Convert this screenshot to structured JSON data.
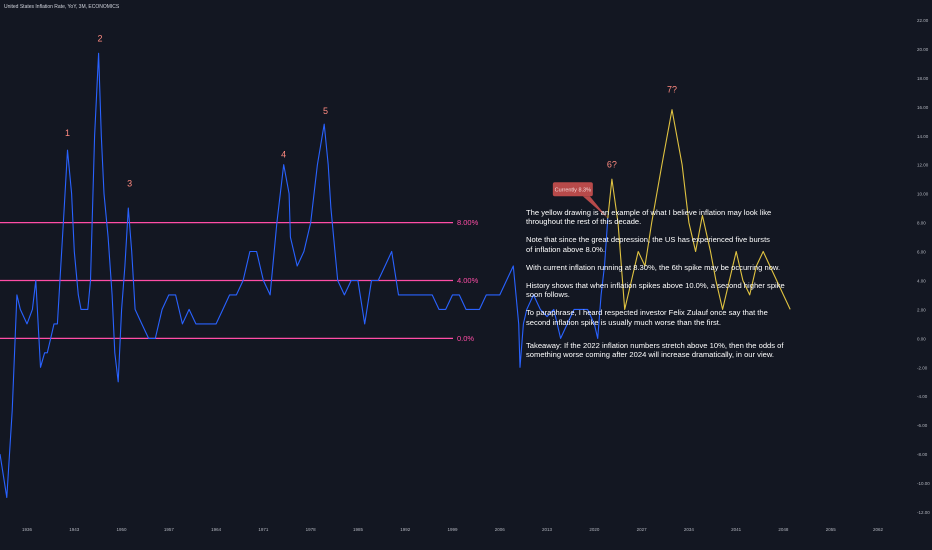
{
  "title": "United States Inflation Rate, YoY, 3M, ECONOMICS",
  "chart_data": {
    "type": "line",
    "title": "United States Inflation Rate, YoY, 3M, ECONOMICS",
    "xlabel": "",
    "ylabel": "",
    "ylim": [
      -12,
      22
    ],
    "xlim": [
      1932,
      2066
    ],
    "x_ticks": [
      "1936",
      "1943",
      "1950",
      "1957",
      "1964",
      "1971",
      "1978",
      "1985",
      "1992",
      "1999",
      "2006",
      "2013",
      "2020",
      "2027",
      "2034",
      "2041",
      "2048",
      "2055",
      "2062"
    ],
    "y_ticks": [
      "22.00",
      "20.00",
      "18.00",
      "16.00",
      "14.00",
      "12.00",
      "10.00",
      "8.00",
      "6.00",
      "4.00",
      "2.00",
      "0.00",
      "-2.00",
      "-4.00",
      "-6.00",
      "-8.00",
      "-10.00",
      "-12.00"
    ],
    "series": [
      {
        "name": "",
        "color": "#2962ff",
        "points": [
          [
            1932,
            -8
          ],
          [
            1933,
            -11
          ],
          [
            1933.8,
            -5
          ],
          [
            1934.5,
            3
          ],
          [
            1935,
            2
          ],
          [
            1936,
            1
          ],
          [
            1936.8,
            2
          ],
          [
            1937.3,
            4
          ],
          [
            1938,
            -2
          ],
          [
            1938.6,
            -1
          ],
          [
            1939,
            -1
          ],
          [
            1939.5,
            0
          ],
          [
            1940,
            1
          ],
          [
            1940.5,
            1
          ],
          [
            1941,
            5
          ],
          [
            1941.5,
            9
          ],
          [
            1942,
            13
          ],
          [
            1942.6,
            10
          ],
          [
            1943,
            6
          ],
          [
            1943.6,
            3
          ],
          [
            1944,
            2
          ],
          [
            1944.5,
            2
          ],
          [
            1945,
            2
          ],
          [
            1945.4,
            4
          ],
          [
            1946,
            14
          ],
          [
            1946.6,
            19.7
          ],
          [
            1947,
            14
          ],
          [
            1947.4,
            10
          ],
          [
            1948,
            7
          ],
          [
            1948.6,
            3
          ],
          [
            1949,
            -1
          ],
          [
            1949.5,
            -3
          ],
          [
            1950,
            2
          ],
          [
            1950.5,
            5
          ],
          [
            1951,
            9
          ],
          [
            1951.5,
            6
          ],
          [
            1952,
            2
          ],
          [
            1953,
            1
          ],
          [
            1954,
            0
          ],
          [
            1955,
            0
          ],
          [
            1956,
            2
          ],
          [
            1957,
            3
          ],
          [
            1958,
            3
          ],
          [
            1959,
            1
          ],
          [
            1960,
            2
          ],
          [
            1961,
            1
          ],
          [
            1962,
            1
          ],
          [
            1963,
            1
          ],
          [
            1964,
            1
          ],
          [
            1965,
            2
          ],
          [
            1966,
            3
          ],
          [
            1967,
            3
          ],
          [
            1968,
            4
          ],
          [
            1969,
            6
          ],
          [
            1970,
            6
          ],
          [
            1971,
            4
          ],
          [
            1972,
            3
          ],
          [
            1973,
            8
          ],
          [
            1974,
            12
          ],
          [
            1974.8,
            10
          ],
          [
            1975,
            7
          ],
          [
            1976,
            5
          ],
          [
            1977,
            6
          ],
          [
            1978,
            8
          ],
          [
            1979,
            12
          ],
          [
            1980,
            14.8
          ],
          [
            1980.6,
            12
          ],
          [
            1981,
            9
          ],
          [
            1982,
            4
          ],
          [
            1983,
            3
          ],
          [
            1984,
            4
          ],
          [
            1985,
            4
          ],
          [
            1986,
            1
          ],
          [
            1987,
            4
          ],
          [
            1988,
            4
          ],
          [
            1989,
            5
          ],
          [
            1990,
            6
          ],
          [
            1991,
            3
          ],
          [
            1992,
            3
          ],
          [
            1993,
            3
          ],
          [
            1994,
            3
          ],
          [
            1995,
            3
          ],
          [
            1996,
            3
          ],
          [
            1997,
            2
          ],
          [
            1998,
            2
          ],
          [
            1999,
            3
          ],
          [
            2000,
            3
          ],
          [
            2001,
            2
          ],
          [
            2002,
            2
          ],
          [
            2003,
            2
          ],
          [
            2004,
            3
          ],
          [
            2005,
            3
          ],
          [
            2006,
            3
          ],
          [
            2007,
            4
          ],
          [
            2008,
            5
          ],
          [
            2008.8,
            1
          ],
          [
            2009,
            -2
          ],
          [
            2009.5,
            1
          ],
          [
            2010,
            2
          ],
          [
            2011,
            3
          ],
          [
            2012,
            2
          ],
          [
            2013,
            1.5
          ],
          [
            2014,
            2
          ],
          [
            2015,
            0
          ],
          [
            2016,
            1
          ],
          [
            2017,
            2
          ],
          [
            2018,
            2
          ],
          [
            2019,
            2
          ],
          [
            2020,
            1
          ],
          [
            2020.5,
            0
          ],
          [
            2021,
            3
          ],
          [
            2021.5,
            5
          ],
          [
            2022,
            8.3
          ]
        ]
      },
      {
        "name": "",
        "color": "#e0c341",
        "points": [
          [
            2022,
            8.3
          ],
          [
            2022.6,
            11
          ],
          [
            2023.5,
            8
          ],
          [
            2024.5,
            2
          ],
          [
            2025.5,
            4
          ],
          [
            2026.5,
            6
          ],
          [
            2027.5,
            5
          ],
          [
            2028.5,
            8
          ],
          [
            2030,
            12
          ],
          [
            2031.5,
            15.8
          ],
          [
            2033,
            12
          ],
          [
            2034,
            8
          ],
          [
            2035,
            6
          ],
          [
            2036,
            8.5
          ],
          [
            2037.2,
            6
          ],
          [
            2038,
            4
          ],
          [
            2039,
            2
          ],
          [
            2040,
            4
          ],
          [
            2041,
            6
          ],
          [
            2042,
            4
          ],
          [
            2043,
            3
          ],
          [
            2044,
            5
          ],
          [
            2045,
            6
          ],
          [
            2046,
            5
          ],
          [
            2047,
            4
          ],
          [
            2048,
            3
          ],
          [
            2049,
            2
          ]
        ]
      }
    ],
    "horizontal_lines": [
      {
        "value": 8.0,
        "label": "8.00%",
        "color": "#ff4da6"
      },
      {
        "value": 4.0,
        "label": "4.00%",
        "color": "#ff4da6"
      },
      {
        "value": 0.0,
        "label": "0.0%",
        "color": "#ff4da6"
      }
    ],
    "annotations": [
      {
        "text": "1",
        "x": 1942,
        "y": 14.0,
        "color": "#ff8a80"
      },
      {
        "text": "2",
        "x": 1946.8,
        "y": 20.5,
        "color": "#ff8a80"
      },
      {
        "text": "3",
        "x": 1951.2,
        "y": 10.5,
        "color": "#ff8a80"
      },
      {
        "text": "4",
        "x": 1974,
        "y": 12.5,
        "color": "#ff8a80"
      },
      {
        "text": "5",
        "x": 1980.2,
        "y": 15.5,
        "color": "#ff8a80"
      },
      {
        "text": "6?",
        "x": 2022.6,
        "y": 11.8,
        "color": "#ff8a80"
      },
      {
        "text": "7?",
        "x": 2031.5,
        "y": 17.0,
        "color": "#ff8a80"
      }
    ],
    "callout": {
      "text": "Currently 8.3%",
      "x": 2022,
      "y": 8.3,
      "color": "#b84a4a"
    },
    "grid": false
  },
  "notes": [
    "The yellow drawing is an example of what I believe inflation may look like\nthroughout the rest of this decade.",
    "Note that since the great depression, the US has experienced five bursts\nof inflation above 8.0%.",
    "With current inflation running at 8.30%, the 6th spike may be occurring now.",
    "History shows that when inflation spikes above 10.0%, a second higher spike\nsoon follows.",
    "To paraphrase, I heard respected investor Felix Zulauf once say that the\nsecond inflation spike is usually much worse than the first.",
    "Takeaway: If the 2022 inflation numbers stretch above 10%, then the odds of\nsomething worse coming after 2024 will increase dramatically, in our view."
  ],
  "colors": {
    "background": "#131722",
    "historical_line": "#2962ff",
    "projection_line": "#e0c341",
    "level_lines": "#ff4da6",
    "annotations": "#ff8a80",
    "callout": "#b84a4a"
  }
}
